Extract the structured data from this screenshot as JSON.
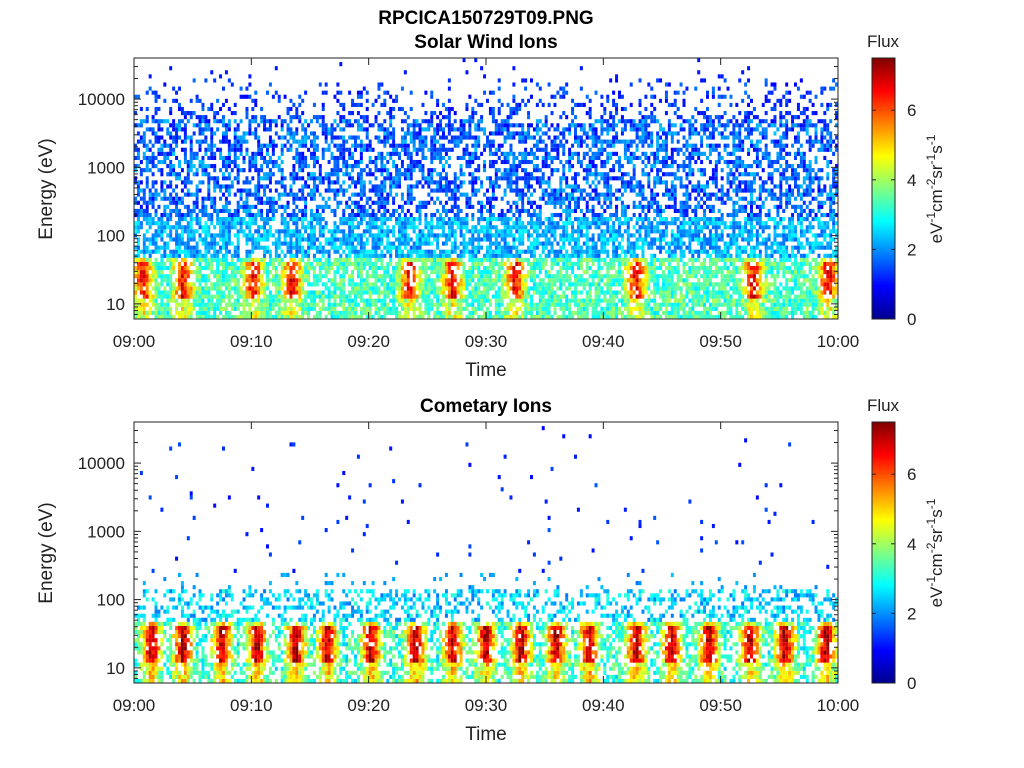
{
  "figure": {
    "filename": "RPCICA150729T09.PNG"
  },
  "colors": {
    "colormap": [
      "#00008f",
      "#0000ff",
      "#0080ff",
      "#00ffff",
      "#80ff80",
      "#ffff00",
      "#ff8000",
      "#ff0000",
      "#800000"
    ]
  },
  "chart_data": [
    {
      "type": "heatmap",
      "title": "Solar Wind Ions",
      "xlabel": "Time",
      "ylabel": "Energy (eV)",
      "x_ticks": [
        "09:00",
        "09:10",
        "09:20",
        "09:30",
        "09:40",
        "09:50",
        "10:00"
      ],
      "y_ticks": [
        "10",
        "100",
        "1000",
        "10000"
      ],
      "y_scale": "log",
      "ylim": [
        6,
        40000
      ],
      "xlim_minutes": [
        0,
        60
      ],
      "colorbar": {
        "title": "Flux",
        "label": "eV-1cm-2sr-1s-1",
        "ticks": [
          "0",
          "2",
          "4",
          "6"
        ],
        "range": [
          0,
          7.5
        ]
      },
      "hotspot_minutes": [
        0.8,
        4.2,
        10.2,
        13.5,
        23.5,
        27.2,
        32.5,
        42.8,
        52.8,
        59.2
      ],
      "summary": "Dense broadband flux (~1-3) from 30 eV to ~15000 eV across full hour; elevated flux (4-7) at 15-40 eV with red peaks near 25 eV"
    },
    {
      "type": "heatmap",
      "title": "Cometary Ions",
      "xlabel": "Time",
      "ylabel": "Energy (eV)",
      "x_ticks": [
        "09:00",
        "09:10",
        "09:20",
        "09:30",
        "09:40",
        "09:50",
        "10:00"
      ],
      "y_ticks": [
        "10",
        "100",
        "1000",
        "10000"
      ],
      "y_scale": "log",
      "ylim": [
        6,
        40000
      ],
      "xlim_minutes": [
        0,
        60
      ],
      "colorbar": {
        "title": "Flux",
        "label": "eV-1cm-2sr-1s-1",
        "ticks": [
          "0",
          "2",
          "4",
          "6"
        ],
        "range": [
          0,
          7.5
        ]
      },
      "hotspot_minutes": [
        1.5,
        4.2,
        7.5,
        10.5,
        13.8,
        16.5,
        20.2,
        24.0,
        27.2,
        30.0,
        33.0,
        36.0,
        38.8,
        42.8,
        45.8,
        49.0,
        52.5,
        55.5,
        59.0
      ],
      "summary": "Strong flux (5-7) at 10-40 eV with periodic red bursts; moderate flux (2-3) at 60-130 eV; sparse low flux points above 200 eV"
    }
  ]
}
